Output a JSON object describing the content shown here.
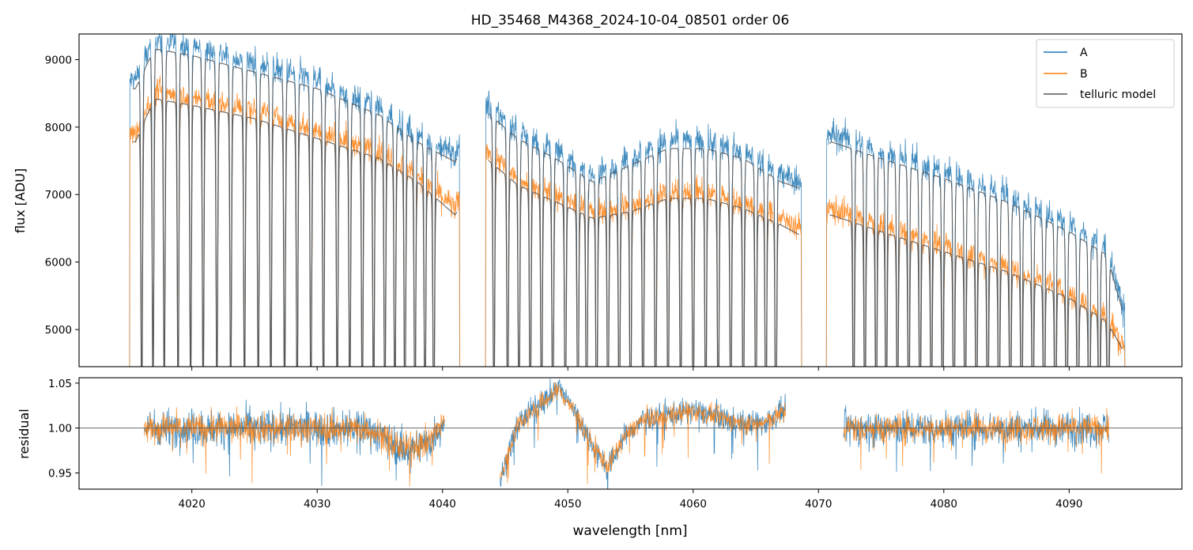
{
  "chart_data": [
    {
      "type": "line",
      "panel": "top",
      "title": "HD_35468_M4368_2024-10-04_08501  order 06",
      "xlabel": "",
      "ylabel": "flux [ADU]",
      "xlim": [
        4011,
        4099
      ],
      "ylim": [
        4450,
        9380
      ],
      "yticks": [
        5000,
        6000,
        7000,
        8000,
        9000
      ],
      "xticks": [
        4020,
        4030,
        4040,
        4050,
        4060,
        4070,
        4080,
        4090
      ],
      "segments": [
        [
          4015.0,
          4041.4
        ],
        [
          4043.4,
          4068.7
        ],
        [
          4070.6,
          4094.5
        ]
      ],
      "telluric_lines": {
        "segment_1": [
          4016.0,
          4016.9,
          4017.8,
          4018.9,
          4019.9,
          4020.9,
          4022.0,
          4023.1,
          4024.2,
          4025.3,
          4026.3,
          4027.4,
          4028.4,
          4029.5,
          4030.5,
          4031.6,
          4032.6,
          4033.6,
          4034.5,
          4035.4,
          4036.2,
          4037.0,
          4037.8,
          4038.6,
          4039.3
        ],
        "segment_2": [
          4044.1,
          4045.2,
          4046.1,
          4047.0,
          4047.9,
          4048.8,
          4049.8,
          4050.8,
          4051.5,
          4052.3,
          4053.2,
          4054.1,
          4055.0,
          4056.0,
          4057.0,
          4058.0,
          4059.0,
          4060.0,
          4061.0,
          4062.0,
          4063.0,
          4064.0,
          4065.0,
          4065.8,
          4066.6
        ],
        "segment_3": [
          4072.8,
          4073.7,
          4074.6,
          4075.4,
          4076.3,
          4077.2,
          4078.1,
          4079.0,
          4079.9,
          4080.8,
          4081.7,
          4082.6,
          4083.5,
          4084.4,
          4085.3,
          4086.2,
          4087.1,
          4088.0,
          4088.9,
          4089.8,
          4090.7,
          4091.6,
          4092.4,
          4093.1
        ]
      },
      "continuum_A": [
        [
          4015.5,
          8700
        ],
        [
          4017,
          9300
        ],
        [
          4020,
          9200
        ],
        [
          4025,
          8950
        ],
        [
          4030,
          8700
        ],
        [
          4035,
          8300
        ],
        [
          4038,
          7900
        ],
        [
          4041,
          7600
        ],
        [
          4043.5,
          8350
        ],
        [
          4046,
          7950
        ],
        [
          4049,
          7650
        ],
        [
          4052,
          7300
        ],
        [
          4055,
          7550
        ],
        [
          4058,
          7800
        ],
        [
          4061,
          7800
        ],
        [
          4064,
          7650
        ],
        [
          4067,
          7300
        ],
        [
          4068.5,
          7200
        ],
        [
          4071,
          7900
        ],
        [
          4075,
          7650
        ],
        [
          4080,
          7350
        ],
        [
          4085,
          7000
        ],
        [
          4090,
          6550
        ],
        [
          4093,
          6200
        ],
        [
          4094.5,
          5200
        ]
      ],
      "continuum_B": [
        [
          4015.5,
          7900
        ],
        [
          4017,
          8550
        ],
        [
          4020,
          8450
        ],
        [
          4025,
          8250
        ],
        [
          4030,
          7950
        ],
        [
          4035,
          7650
        ],
        [
          4038,
          7300
        ],
        [
          4041,
          6800
        ],
        [
          4043.5,
          7650
        ],
        [
          4046,
          7250
        ],
        [
          4049,
          7000
        ],
        [
          4052,
          6750
        ],
        [
          4055,
          6850
        ],
        [
          4058,
          7050
        ],
        [
          4061,
          7050
        ],
        [
          4064,
          6900
        ],
        [
          4067,
          6650
        ],
        [
          4068.5,
          6500
        ],
        [
          4071,
          6800
        ],
        [
          4075,
          6550
        ],
        [
          4080,
          6250
        ],
        [
          4085,
          5950
        ],
        [
          4090,
          5550
        ],
        [
          4093,
          5200
        ],
        [
          4094.5,
          4700
        ]
      ],
      "series": [
        {
          "name": "A",
          "color": "#1f77b4"
        },
        {
          "name": "B",
          "color": "#ff7f0e"
        },
        {
          "name": "telluric model",
          "color": "#555555"
        }
      ],
      "legend": {
        "position": "top-right",
        "entries": [
          "A",
          "B",
          "telluric model"
        ]
      }
    },
    {
      "type": "line",
      "panel": "bottom",
      "xlabel": "wavelength [nm]",
      "ylabel": "residual",
      "xlim": [
        4011,
        4099
      ],
      "ylim": [
        0.932,
        1.056
      ],
      "yticks": [
        "0.95",
        "1.00",
        "1.05"
      ],
      "xticks": [
        4020,
        4030,
        4040,
        4050,
        4060,
        4070,
        4080,
        4090
      ],
      "reference_line": 1.0,
      "segments": [
        [
          4016.2,
          4040.2
        ],
        [
          4044.6,
          4067.4
        ],
        [
          4072.0,
          4093.2
        ]
      ],
      "trend_A": [
        [
          4016.2,
          1.0
        ],
        [
          4030,
          1.0
        ],
        [
          4034,
          1.0
        ],
        [
          4037,
          0.975
        ],
        [
          4039,
          0.985
        ],
        [
          4040.2,
          1.01
        ],
        [
          4044.6,
          0.94
        ],
        [
          4046,
          1.005
        ],
        [
          4048,
          1.03
        ],
        [
          4049.3,
          1.045
        ],
        [
          4050.5,
          1.02
        ],
        [
          4052,
          0.98
        ],
        [
          4053.2,
          0.955
        ],
        [
          4054.5,
          0.99
        ],
        [
          4056,
          1.01
        ],
        [
          4060,
          1.02
        ],
        [
          4064,
          1.005
        ],
        [
          4065.5,
          1.005
        ],
        [
          4067.4,
          1.02
        ],
        [
          4072,
          1.0
        ],
        [
          4093.2,
          1.0
        ]
      ],
      "noise": {
        "segment_1": 0.018,
        "segment_2": 0.012,
        "segment_3": 0.017
      },
      "series": [
        {
          "name": "A",
          "color": "#1f77b4"
        },
        {
          "name": "B",
          "color": "#ff7f0e"
        }
      ]
    }
  ]
}
